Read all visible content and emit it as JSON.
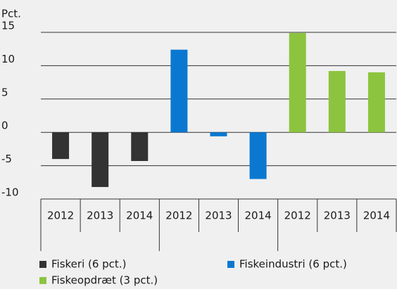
{
  "chart_data": {
    "type": "bar",
    "y_label": "Pct.",
    "categories": [
      "2012",
      "2013",
      "2014",
      "2012",
      "2013",
      "2014",
      "2012",
      "2013",
      "2014"
    ],
    "series": [
      {
        "name": "Fiskeri (6 pct.)",
        "color": "#333333",
        "values": [
          -4,
          -8.2,
          -4.3,
          null,
          null,
          null,
          null,
          null,
          null
        ]
      },
      {
        "name": "Fiskeindustri (6 pct.)",
        "color": "#0a78d1",
        "values": [
          null,
          null,
          null,
          12.4,
          -0.6,
          -7,
          null,
          null,
          null
        ]
      },
      {
        "name": "Fiskeopdræt (3 pct.)",
        "color": "#8cc43f",
        "values": [
          null,
          null,
          null,
          null,
          null,
          null,
          14.9,
          9.2,
          9.0
        ]
      }
    ],
    "ylim": [
      -10,
      15
    ],
    "yticks": [
      -10,
      -5,
      0,
      5,
      10,
      15
    ],
    "grid": true
  }
}
